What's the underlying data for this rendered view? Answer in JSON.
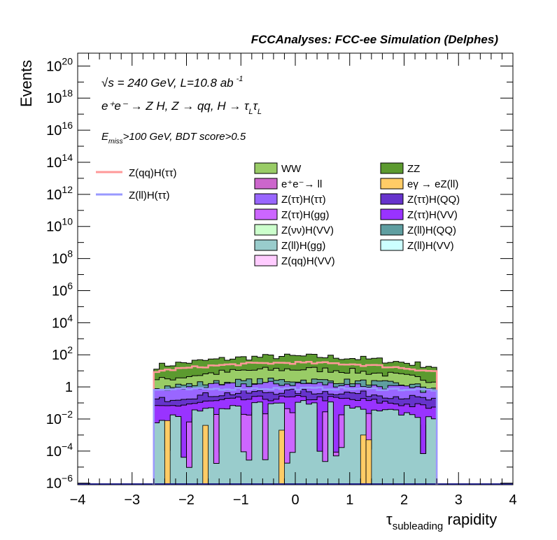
{
  "chart_data": {
    "type": "area",
    "title": "FCCAnalyses: FCC-ee Simulation (Delphes)",
    "ylabel": "Events",
    "xlabel_main": "τ",
    "xlabel_sub": "subleading",
    "xlabel_rest": " rapidity",
    "xlim": [
      -4,
      4
    ],
    "ylim_log10": [
      -6.1,
      20.8
    ],
    "y_scale": "log",
    "x_ticks": [
      "−4",
      "−3",
      "−2",
      "−1",
      "0",
      "1",
      "2",
      "3",
      "4"
    ],
    "y_ticks": [
      {
        "exp": -6,
        "base": "10",
        "sup": "−6"
      },
      {
        "exp": -4,
        "base": "10",
        "sup": "−4"
      },
      {
        "exp": -2,
        "base": "10",
        "sup": "−2"
      },
      {
        "exp": 0,
        "base": "1",
        "sup": ""
      },
      {
        "exp": 2,
        "base": "10",
        "sup": "2"
      },
      {
        "exp": 4,
        "base": "10",
        "sup": "4"
      },
      {
        "exp": 6,
        "base": "10",
        "sup": "6"
      },
      {
        "exp": 8,
        "base": "10",
        "sup": "8"
      },
      {
        "exp": 10,
        "base": "10",
        "sup": "10"
      },
      {
        "exp": 12,
        "base": "10",
        "sup": "12"
      },
      {
        "exp": 14,
        "base": "10",
        "sup": "14"
      },
      {
        "exp": 16,
        "base": "10",
        "sup": "16"
      },
      {
        "exp": 18,
        "base": "10",
        "sup": "18"
      },
      {
        "exp": 20,
        "base": "10",
        "sup": "20"
      }
    ],
    "annotations": {
      "line1_sqrt": "√s",
      "line1_rest": " = 240 GeV, L=10.8 ab",
      "line1_sup": "-1",
      "line2": "e⁺e⁻ → Z H, Z → qq, H → τ",
      "line2_sub1": "L",
      "line2_tau2": "τ",
      "line2_sub2": "L",
      "line3_E": "E",
      "line3_sub": "miss",
      "line3_rest": ">100 GeV, BDT score>0.5"
    },
    "binning": {
      "start": -2.6,
      "end": 2.6,
      "width": 0.1
    },
    "stacked_backgrounds": [
      {
        "name": "ZZ",
        "color": "#5c9a2f",
        "level": [
          1.2,
          1.9
        ]
      },
      {
        "name": "WW",
        "color": "#99cc66",
        "level": [
          0.3,
          1.1
        ]
      },
      {
        "name": "Z(ll)H(QQ)",
        "color": "#5f9ea0",
        "level": [
          -0.1,
          0.4
        ]
      },
      {
        "name": "Z(ττ)H(ττ)",
        "color": "#9966ff",
        "level": [
          -0.3,
          0.2
        ]
      },
      {
        "name": "Z(ττ)H(QQ)",
        "color": "#6633cc",
        "level": [
          -0.9,
          -0.3
        ]
      },
      {
        "name": "Z(ττ)H(VV)",
        "color": "#9933ff",
        "level": [
          -1.4,
          -0.7
        ]
      },
      {
        "name": "Z(ττ)H(gg)",
        "color": "#cc66ff",
        "level": [
          -2.5,
          -1.5
        ]
      },
      {
        "name": "Z(ll)H(gg)",
        "color": "#99cccc",
        "level": [
          -2.2,
          -1.0
        ]
      }
    ],
    "signals": [
      {
        "name": "Z(qq)H(ττ)",
        "color": "#ff9999",
        "level": [
          0.9,
          1.5
        ]
      },
      {
        "name": "Z(ll)H(ττ)",
        "color": "#9999ff",
        "level": [
          -0.2,
          -0.1
        ]
      }
    ],
    "legend_left": [
      {
        "label": "Z(qq)H(ττ)",
        "color": "#ff9999"
      },
      {
        "label": "Z(ll)H(ττ)",
        "color": "#9999ff"
      }
    ],
    "legend_col1": [
      {
        "label": "WW",
        "color": "#99cc66"
      },
      {
        "label": "e⁺e⁻→ ll",
        "color": "#cc66cc"
      },
      {
        "label": "Z(ττ)H(ττ)",
        "color": "#9966ff"
      },
      {
        "label": "Z(ττ)H(gg)",
        "color": "#cc66ff"
      },
      {
        "label": "Z(νν)H(VV)",
        "color": "#ccffcc"
      },
      {
        "label": "Z(ll)H(gg)",
        "color": "#99cccc"
      },
      {
        "label": "Z(qq)H(VV)",
        "color": "#ffccff"
      }
    ],
    "legend_col2": [
      {
        "label": "ZZ",
        "color": "#5c9a2f"
      },
      {
        "label": "eγ → eZ(ll)",
        "color": "#ffcc66"
      },
      {
        "label": "Z(ττ)H(QQ)",
        "color": "#6633cc"
      },
      {
        "label": "Z(ττ)H(VV)",
        "color": "#9933ff"
      },
      {
        "label": "Z(ll)H(QQ)",
        "color": "#5f9ea0"
      },
      {
        "label": "Z(ll)H(VV)",
        "color": "#ccffff"
      }
    ]
  }
}
